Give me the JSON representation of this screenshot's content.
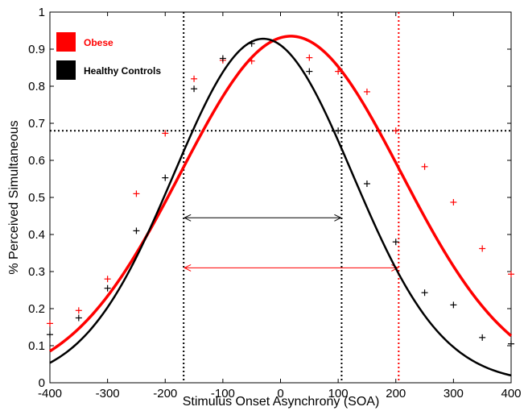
{
  "chart_data": {
    "type": "scatter",
    "xlabel": "Stimulus Onset Asynchrony (SOA)",
    "ylabel": "% Perceived Simultaneous",
    "xlim": [
      -400,
      400
    ],
    "ylim": [
      0,
      1
    ],
    "xticks": [
      -400,
      -300,
      -200,
      -100,
      0,
      100,
      200,
      300,
      400
    ],
    "yticks": [
      0,
      0.1,
      0.2,
      0.3,
      0.4,
      0.5,
      0.6,
      0.7,
      0.8,
      0.9,
      1
    ],
    "x_tick_labels": [
      "-400",
      "-300",
      "-200",
      "-100",
      "0",
      "100",
      "200",
      "300",
      "400"
    ],
    "y_tick_labels": [
      "0",
      "0.1",
      "0.2",
      "0.3",
      "0.4",
      "0.5",
      "0.6",
      "0.7",
      "0.8",
      "0.9",
      "1"
    ],
    "grid": false,
    "legend_position": "top-left",
    "series": [
      {
        "name": "Obese",
        "color": "#ff0000",
        "points": [
          {
            "x": -400,
            "y": 0.16
          },
          {
            "x": -350,
            "y": 0.195
          },
          {
            "x": -300,
            "y": 0.28
          },
          {
            "x": -250,
            "y": 0.51
          },
          {
            "x": -200,
            "y": 0.673
          },
          {
            "x": -150,
            "y": 0.82
          },
          {
            "x": -100,
            "y": 0.87
          },
          {
            "x": -50,
            "y": 0.868
          },
          {
            "x": 50,
            "y": 0.877
          },
          {
            "x": 100,
            "y": 0.84
          },
          {
            "x": 150,
            "y": 0.785
          },
          {
            "x": 200,
            "y": 0.68
          },
          {
            "x": 250,
            "y": 0.583
          },
          {
            "x": 300,
            "y": 0.487
          },
          {
            "x": 350,
            "y": 0.362
          },
          {
            "x": 400,
            "y": 0.293
          }
        ],
        "fit": {
          "peak": 0.935,
          "mean": 18,
          "sd": 191
        }
      },
      {
        "name": "Healthy Controls",
        "color": "#000000",
        "points": [
          {
            "x": -400,
            "y": 0.13
          },
          {
            "x": -350,
            "y": 0.175
          },
          {
            "x": -300,
            "y": 0.255
          },
          {
            "x": -250,
            "y": 0.41
          },
          {
            "x": -200,
            "y": 0.553
          },
          {
            "x": -150,
            "y": 0.793
          },
          {
            "x": -100,
            "y": 0.875
          },
          {
            "x": -50,
            "y": 0.915
          },
          {
            "x": 50,
            "y": 0.84
          },
          {
            "x": 100,
            "y": 0.68
          },
          {
            "x": 150,
            "y": 0.537
          },
          {
            "x": 200,
            "y": 0.38
          },
          {
            "x": 250,
            "y": 0.243
          },
          {
            "x": 300,
            "y": 0.21
          },
          {
            "x": 350,
            "y": 0.122
          },
          {
            "x": 400,
            "y": 0.105
          }
        ],
        "fit": {
          "peak": 0.928,
          "mean": -30,
          "sd": 155
        }
      }
    ],
    "threshold": 0.68,
    "window_bounds": {
      "healthy": [
        -168,
        106
      ],
      "obese": [
        -168,
        205
      ]
    }
  }
}
